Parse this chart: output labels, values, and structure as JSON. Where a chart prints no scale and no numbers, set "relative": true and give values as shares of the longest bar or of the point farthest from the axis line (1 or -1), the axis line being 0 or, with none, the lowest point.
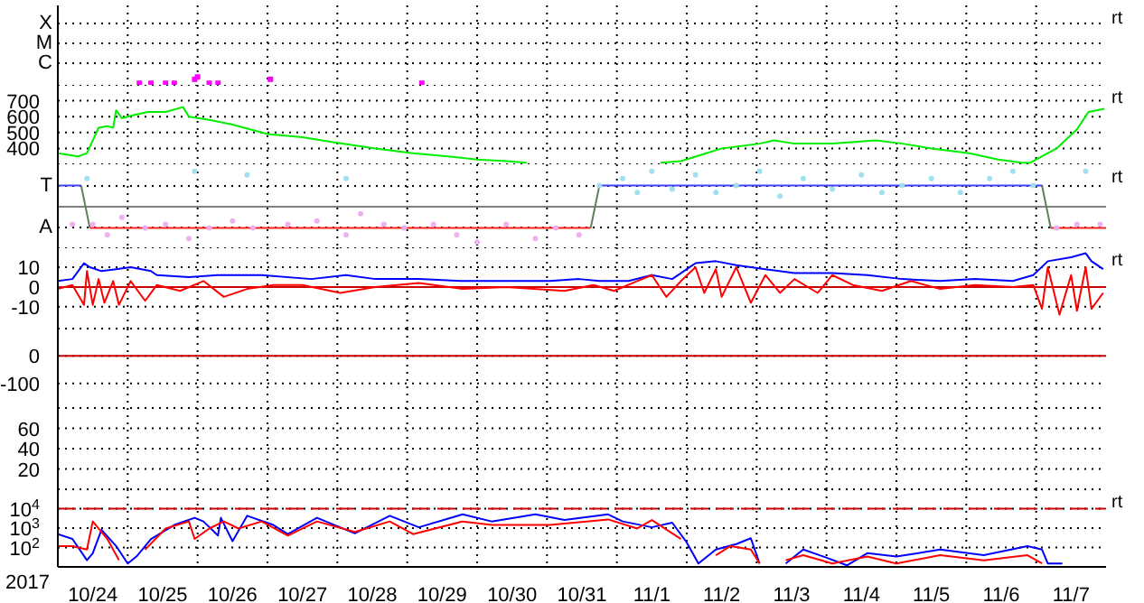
{
  "chart_data": [
    {
      "type": "scatter",
      "relative": true,
      "marker": "square",
      "grid": true,
      "tick_labels": false,
      "xlim": [
        "2017-10-24",
        "2017-11-08"
      ],
      "xticks": [
        {
          "value": "2017-10-25",
          "label": null
        },
        {
          "value": "2017-10-26",
          "label": null
        },
        {
          "value": "2017-10-27",
          "label": null
        },
        {
          "value": "2017-10-28",
          "label": null
        },
        {
          "value": "2017-10-29",
          "label": null
        },
        {
          "value": "2017-10-30",
          "label": null
        },
        {
          "value": "2017-10-31",
          "label": null
        },
        {
          "value": "2017-11-01",
          "label": null
        },
        {
          "value": "2017-11-02",
          "label": null
        },
        {
          "value": "2017-11-03",
          "label": null
        },
        {
          "value": "2017-11-04",
          "label": null
        },
        {
          "value": "2017-11-05",
          "label": null
        },
        {
          "value": "2017-11-06",
          "label": null
        },
        {
          "value": "2017-11-07",
          "label": null
        }
      ],
      "annotations": [
        "X",
        "M",
        "C",
        "rt"
      ],
      "series": [
        {
          "color": "#ff00ff",
          "x": [
            "2017-10-25T04:00",
            "2017-10-25T08:00",
            "2017-10-25T13:00",
            "2017-10-25T16:00",
            "2017-10-25T23:00",
            "2017-10-26T00:00",
            "2017-10-26T04:00",
            "2017-10-26T07:00",
            "2017-10-27T01:00",
            "2017-10-29T05:00"
          ],
          "values": [
            0.2,
            0.2,
            0.2,
            0.2,
            0.7,
            1,
            0.2,
            0.2,
            0.7,
            0.2
          ]
        }
      ]
    },
    {
      "type": "line",
      "grid": true,
      "tick_labels": "y",
      "xlim": [
        "2017-10-24",
        "2017-11-08"
      ],
      "xticks": [
        {
          "value": "2017-10-25",
          "label": null
        },
        {
          "value": "2017-10-26",
          "label": null
        },
        {
          "value": "2017-10-27",
          "label": null
        },
        {
          "value": "2017-10-28",
          "label": null
        },
        {
          "value": "2017-10-29",
          "label": null
        },
        {
          "value": "2017-10-30",
          "label": null
        },
        {
          "value": "2017-10-31",
          "label": null
        },
        {
          "value": "2017-11-01",
          "label": null
        },
        {
          "value": "2017-11-02",
          "label": null
        },
        {
          "value": "2017-11-03",
          "label": null
        },
        {
          "value": "2017-11-04",
          "label": null
        },
        {
          "value": "2017-11-05",
          "label": null
        },
        {
          "value": "2017-11-06",
          "label": null
        },
        {
          "value": "2017-11-07",
          "label": null
        }
      ],
      "ylim": [
        300,
        800
      ],
      "yticks": [
        400,
        500,
        600,
        700
      ],
      "annotations": [
        "rt"
      ],
      "series": [
        {
          "color": "#00ee00",
          "x": [
            "2017-10-24T00:00",
            "2017-10-24T07:00",
            "2017-10-24T10:00",
            "2017-10-24T14:00",
            "2017-10-24T17:00",
            "2017-10-24T19:00",
            "2017-10-24T20:00",
            "2017-10-24T22:00",
            "2017-10-25T02:00",
            "2017-10-25T07:00",
            "2017-10-25T13:00",
            "2017-10-25T19:00",
            "2017-10-25T21:00",
            "2017-10-26T04:00",
            "2017-10-26T12:00",
            "2017-10-27T00:00",
            "2017-10-27T12:00",
            "2017-10-27T22:00",
            "2017-10-28T13:00",
            "2017-10-29T02:00",
            "2017-10-29T14:00",
            "2017-10-30T00:00",
            "2017-10-30T10:00",
            "2017-10-30T17:00",
            "2017-10-31T12:00",
            "2017-11-01T15:00",
            "2017-11-01T22:00",
            "2017-11-02T05:00",
            "2017-11-02T12:00",
            "2017-11-03T01:00",
            "2017-11-03T06:00",
            "2017-11-03T13:00",
            "2017-11-04T02:00",
            "2017-11-04T17:00",
            "2017-11-05T02:00",
            "2017-11-05T12:00",
            "2017-11-06T01:00",
            "2017-11-06T11:00",
            "2017-11-06T19:00",
            "2017-11-06T22:00",
            "2017-11-07T07:00",
            "2017-11-07T14:00",
            "2017-11-07T18:00",
            "2017-11-07T23:30"
          ],
          "values": [
            370,
            350,
            370,
            530,
            540,
            530,
            640,
            590,
            610,
            630,
            630,
            660,
            600,
            580,
            550,
            490,
            470,
            440,
            400,
            370,
            350,
            330,
            320,
            310,
            null,
            310,
            320,
            360,
            400,
            430,
            450,
            430,
            430,
            450,
            430,
            400,
            370,
            330,
            310,
            310,
            400,
            520,
            630,
            650
          ]
        }
      ]
    },
    {
      "type": "line",
      "relative": true,
      "grid": true,
      "tick_labels": false,
      "xlim": [
        "2017-10-24",
        "2017-11-08"
      ],
      "xticks": [
        {
          "value": "2017-10-25",
          "label": null
        },
        {
          "value": "2017-10-26",
          "label": null
        },
        {
          "value": "2017-10-27",
          "label": null
        },
        {
          "value": "2017-10-28",
          "label": null
        },
        {
          "value": "2017-10-29",
          "label": null
        },
        {
          "value": "2017-10-30",
          "label": null
        },
        {
          "value": "2017-10-31",
          "label": null
        },
        {
          "value": "2017-11-01",
          "label": null
        },
        {
          "value": "2017-11-02",
          "label": null
        },
        {
          "value": "2017-11-03",
          "label": null
        },
        {
          "value": "2017-11-04",
          "label": null
        },
        {
          "value": "2017-11-05",
          "label": null
        },
        {
          "value": "2017-11-06",
          "label": null
        },
        {
          "value": "2017-11-07",
          "label": null
        }
      ],
      "ref_lines": [
        {
          "axis": "y",
          "value": 0,
          "color": "#808080"
        }
      ],
      "annotations": [
        "T",
        "A",
        "rt"
      ],
      "series": [
        {
          "type": "scatter",
          "marker": "circle",
          "color": "#f0b0f0",
          "x": [
            "2017-10-24T05:00",
            "2017-10-24T12:00",
            "2017-10-24T17:00",
            "2017-10-24T22:00",
            "2017-10-25T06:00",
            "2017-10-25T13:00",
            "2017-10-25T21:00",
            "2017-10-26T04:00",
            "2017-10-26T12:00",
            "2017-10-26T19:00",
            "2017-10-27T07:00",
            "2017-10-27T17:00",
            "2017-10-28T03:00",
            "2017-10-28T08:00",
            "2017-10-28T16:00",
            "2017-10-28T23:00",
            "2017-10-29T09:00",
            "2017-10-29T17:00",
            "2017-10-30T00:00",
            "2017-10-30T10:00",
            "2017-10-30T20:00",
            "2017-10-31T03:00",
            "2017-10-31T11:00",
            "2017-11-07T07:00",
            "2017-11-07T14:00",
            "2017-11-07T22:00"
          ],
          "values": [
            -0.5,
            -0.5,
            -0.8,
            -0.3,
            -0.6,
            -0.5,
            -0.9,
            -0.6,
            -0.4,
            -0.6,
            -0.5,
            -0.4,
            -0.8,
            -0.2,
            -0.5,
            -0.6,
            -0.5,
            -0.8,
            -1,
            -0.5,
            -0.9,
            -0.6,
            -0.8,
            -0.6,
            -0.5,
            -0.5
          ]
        },
        {
          "type": "scatter",
          "marker": "circle",
          "color": "#a0e0f0",
          "x": [
            "2017-10-24T10:00",
            "2017-10-25T23:00",
            "2017-10-26T17:00",
            "2017-10-28T03:00",
            "2017-10-31T18:00",
            "2017-11-01T02:00",
            "2017-11-01T07:00",
            "2017-11-01T12:00",
            "2017-11-01T19:00",
            "2017-11-02T03:00",
            "2017-11-02T10:00",
            "2017-11-02T17:00",
            "2017-11-03T01:00",
            "2017-11-03T08:00",
            "2017-11-03T16:00",
            "2017-11-04T02:00",
            "2017-11-04T12:00",
            "2017-11-04T19:00",
            "2017-11-05T02:00",
            "2017-11-05T12:00",
            "2017-11-05T22:00",
            "2017-11-06T08:00",
            "2017-11-06T16:00",
            "2017-11-06T23:00",
            "2017-11-07T17:00"
          ],
          "values": [
            0.8,
            1,
            0.9,
            0.8,
            0.6,
            0.8,
            0.4,
            1,
            0.5,
            0.9,
            0.4,
            0.6,
            1,
            0.3,
            0.8,
            0.5,
            0.9,
            0.4,
            0.6,
            0.8,
            0.4,
            0.8,
            1,
            0.6,
            1
          ]
        },
        {
          "color": "#4040ff",
          "x": [
            "2017-10-24T00:00",
            "2017-10-24T08:00",
            "2017-10-28T00:00",
            "2017-10-31T18:00",
            "2017-11-07T02:00"
          ],
          "values": [
            0.6,
            0.6,
            null,
            0.6,
            0.6
          ]
        },
        {
          "color": "#ff2020",
          "x": [
            "2017-10-24T11:00",
            "2017-10-31T15:00",
            "2017-11-03T00:00",
            "2017-11-07T05:00",
            "2017-11-08T00:00"
          ],
          "values": [
            -0.6,
            -0.6,
            null,
            -0.6,
            -0.6
          ]
        },
        {
          "color": "#608060",
          "x": [
            "2017-10-24T08:00",
            "2017-10-24T11:00",
            "2017-10-28T00:00",
            "2017-10-31T15:00",
            "2017-10-31T18:00",
            "2017-11-03T00:00",
            "2017-11-07T02:00",
            "2017-11-07T05:00"
          ],
          "values": [
            0.6,
            -0.6,
            null,
            -0.6,
            0.6,
            null,
            0.6,
            -0.6
          ]
        }
      ]
    },
    {
      "type": "line",
      "grid": true,
      "tick_labels": "y",
      "xlim": [
        "2017-10-24",
        "2017-11-08"
      ],
      "xticks": [
        {
          "value": "2017-10-25",
          "label": null
        },
        {
          "value": "2017-10-26",
          "label": null
        },
        {
          "value": "2017-10-27",
          "label": null
        },
        {
          "value": "2017-10-28",
          "label": null
        },
        {
          "value": "2017-10-29",
          "label": null
        },
        {
          "value": "2017-10-30",
          "label": null
        },
        {
          "value": "2017-10-31",
          "label": null
        },
        {
          "value": "2017-11-01",
          "label": null
        },
        {
          "value": "2017-11-02",
          "label": null
        },
        {
          "value": "2017-11-03",
          "label": null
        },
        {
          "value": "2017-11-04",
          "label": null
        },
        {
          "value": "2017-11-05",
          "label": null
        },
        {
          "value": "2017-11-06",
          "label": null
        },
        {
          "value": "2017-11-07",
          "label": null
        }
      ],
      "ylim": [
        -21,
        20
      ],
      "yticks": [
        -10,
        0,
        10
      ],
      "ref_lines": [
        {
          "axis": "y",
          "value": 0,
          "color": "#cc0000"
        }
      ],
      "annotations": [
        "rt"
      ],
      "series": [
        {
          "color": "#0000ff",
          "x": [
            "2017-10-24T00:00",
            "2017-10-24T05:00",
            "2017-10-24T09:00",
            "2017-10-24T11:00",
            "2017-10-24T15:00",
            "2017-10-24T20:00",
            "2017-10-25T01:00",
            "2017-10-25T08:00",
            "2017-10-25T10:00",
            "2017-10-25T21:00",
            "2017-10-26T07:00",
            "2017-10-26T22:00",
            "2017-10-27T15:00",
            "2017-10-28T03:00",
            "2017-10-28T13:00",
            "2017-10-29T04:00",
            "2017-10-29T19:00",
            "2017-10-30T10:00",
            "2017-10-31T01:00",
            "2017-10-31T11:00",
            "2017-10-31T18:00",
            "2017-11-01T04:00",
            "2017-11-01T12:00",
            "2017-11-01T19:00",
            "2017-11-02T03:00",
            "2017-11-02T10:00",
            "2017-11-02T17:00",
            "2017-11-03T03:00",
            "2017-11-03T13:00",
            "2017-11-04T02:00",
            "2017-11-04T14:00",
            "2017-11-05T02:00",
            "2017-11-05T15:00",
            "2017-11-06T03:00",
            "2017-11-06T16:00",
            "2017-11-06T23:00",
            "2017-11-07T04:00",
            "2017-11-07T12:00",
            "2017-11-07T17:00",
            "2017-11-07T19:00",
            "2017-11-07T23:00"
          ],
          "values": [
            3,
            4,
            12,
            10,
            8,
            9,
            10,
            8,
            6,
            5,
            6,
            6,
            4,
            6,
            4,
            4,
            3,
            3,
            3,
            4,
            3,
            3,
            6,
            4,
            12,
            13,
            11,
            9,
            7,
            7,
            6,
            4,
            3,
            4,
            3,
            6,
            13,
            15,
            17,
            13,
            9
          ]
        },
        {
          "color": "#ff0000",
          "x": [
            "2017-10-24T00:00",
            "2017-10-24T05:00",
            "2017-10-24T09:00",
            "2017-10-24T10:00",
            "2017-10-24T12:00",
            "2017-10-24T14:00",
            "2017-10-24T16:00",
            "2017-10-24T19:00",
            "2017-10-24T21:00",
            "2017-10-25T01:00",
            "2017-10-25T06:00",
            "2017-10-25T10:00",
            "2017-10-25T18:00",
            "2017-10-26T02:00",
            "2017-10-26T09:00",
            "2017-10-26T17:00",
            "2017-10-27T02:00",
            "2017-10-27T12:00",
            "2017-10-28T01:00",
            "2017-10-28T13:00",
            "2017-10-29T04:00",
            "2017-10-29T19:00",
            "2017-10-30T10:00",
            "2017-10-31T06:00",
            "2017-10-31T16:00",
            "2017-10-31T23:00",
            "2017-11-01T07:00",
            "2017-11-01T12:00",
            "2017-11-01T17:00",
            "2017-11-01T22:00",
            "2017-11-02T03:00",
            "2017-11-02T06:00",
            "2017-11-02T10:00",
            "2017-11-02T12:00",
            "2017-11-02T17:00",
            "2017-11-02T22:00",
            "2017-11-03T03:00",
            "2017-11-03T08:00",
            "2017-11-03T13:00",
            "2017-11-03T21:00",
            "2017-11-04T02:00",
            "2017-11-04T09:00",
            "2017-11-04T19:00",
            "2017-11-05T05:00",
            "2017-11-05T15:00",
            "2017-11-06T03:00",
            "2017-11-06T16:00",
            "2017-11-06T23:00",
            "2017-11-07T02:00",
            "2017-11-07T04:00",
            "2017-11-07T08:00",
            "2017-11-07T12:00",
            "2017-11-07T14:00",
            "2017-11-07T17:00",
            "2017-11-07T19:00",
            "2017-11-07T23:00"
          ],
          "values": [
            -1,
            1,
            -9,
            8,
            -9,
            4,
            -8,
            3,
            -9,
            3,
            -7,
            1,
            -2,
            3,
            -5,
            -1,
            1,
            1,
            -3,
            0,
            2,
            -1,
            0,
            -2,
            1,
            -2,
            3,
            6,
            -5,
            3,
            10,
            -3,
            9,
            -5,
            10,
            -8,
            6,
            -3,
            4,
            -3,
            6,
            1,
            -2,
            3,
            -1,
            1,
            0,
            1,
            -11,
            10,
            -14,
            6,
            -12,
            10,
            -11,
            -3
          ]
        }
      ]
    },
    {
      "type": "line",
      "grid": true,
      "tick_labels": "y",
      "xlim": [
        "2017-10-24",
        "2017-11-08"
      ],
      "xticks": [
        {
          "value": "2017-10-25",
          "label": null
        },
        {
          "value": "2017-10-26",
          "label": null
        },
        {
          "value": "2017-10-27",
          "label": null
        },
        {
          "value": "2017-10-28",
          "label": null
        },
        {
          "value": "2017-10-29",
          "label": null
        },
        {
          "value": "2017-10-30",
          "label": null
        },
        {
          "value": "2017-10-31",
          "label": null
        },
        {
          "value": "2017-11-01",
          "label": null
        },
        {
          "value": "2017-11-02",
          "label": null
        },
        {
          "value": "2017-11-03",
          "label": null
        },
        {
          "value": "2017-11-04",
          "label": null
        },
        {
          "value": "2017-11-05",
          "label": null
        },
        {
          "value": "2017-11-06",
          "label": null
        },
        {
          "value": "2017-11-07",
          "label": null
        }
      ],
      "ylim": [
        -190,
        100
      ],
      "yticks": [
        -100,
        0
      ],
      "ref_lines": [
        {
          "axis": "y",
          "value": 0,
          "color": "#cc0000"
        }
      ]
    },
    {
      "type": "line",
      "grid": true,
      "tick_labels": "y",
      "xlim": [
        "2017-10-24",
        "2017-11-08"
      ],
      "xticks": [
        {
          "value": "2017-10-25",
          "label": null
        },
        {
          "value": "2017-10-26",
          "label": null
        },
        {
          "value": "2017-10-27",
          "label": null
        },
        {
          "value": "2017-10-28",
          "label": null
        },
        {
          "value": "2017-10-29",
          "label": null
        },
        {
          "value": "2017-10-30",
          "label": null
        },
        {
          "value": "2017-10-31",
          "label": null
        },
        {
          "value": "2017-11-01",
          "label": null
        },
        {
          "value": "2017-11-02",
          "label": null
        },
        {
          "value": "2017-11-03",
          "label": null
        },
        {
          "value": "2017-11-04",
          "label": null
        },
        {
          "value": "2017-11-05",
          "label": null
        },
        {
          "value": "2017-11-06",
          "label": null
        },
        {
          "value": "2017-11-07",
          "label": null
        }
      ],
      "ylim": [
        0,
        80
      ],
      "yticks": [
        20,
        40,
        60
      ]
    },
    {
      "type": "line",
      "log": "y",
      "grid": true,
      "xlabel": "2017",
      "xlim": [
        "2017-10-24",
        "2017-11-08"
      ],
      "xticks": [
        {
          "value": "2017-10-24T12:00",
          "label": "10/24"
        },
        {
          "value": "2017-10-25",
          "label": null
        },
        {
          "value": "2017-10-25T12:00",
          "label": "10/25"
        },
        {
          "value": "2017-10-26",
          "label": null
        },
        {
          "value": "2017-10-26T12:00",
          "label": "10/26"
        },
        {
          "value": "2017-10-27",
          "label": null
        },
        {
          "value": "2017-10-27T12:00",
          "label": "10/27"
        },
        {
          "value": "2017-10-28",
          "label": null
        },
        {
          "value": "2017-10-28T12:00",
          "label": "10/28"
        },
        {
          "value": "2017-10-29",
          "label": null
        },
        {
          "value": "2017-10-29T12:00",
          "label": "10/29"
        },
        {
          "value": "2017-10-30",
          "label": null
        },
        {
          "value": "2017-10-30T12:00",
          "label": "10/30"
        },
        {
          "value": "2017-10-31",
          "label": null
        },
        {
          "value": "2017-10-31T12:00",
          "label": "10/31"
        },
        {
          "value": "2017-11-01",
          "label": null
        },
        {
          "value": "2017-11-01T12:00",
          "label": "11/1"
        },
        {
          "value": "2017-11-02",
          "label": null
        },
        {
          "value": "2017-11-02T12:00",
          "label": "11/2"
        },
        {
          "value": "2017-11-03",
          "label": null
        },
        {
          "value": "2017-11-03T12:00",
          "label": "11/3"
        },
        {
          "value": "2017-11-04",
          "label": null
        },
        {
          "value": "2017-11-04T12:00",
          "label": "11/4"
        },
        {
          "value": "2017-11-05",
          "label": null
        },
        {
          "value": "2017-11-05T12:00",
          "label": "11/5"
        },
        {
          "value": "2017-11-06",
          "label": null
        },
        {
          "value": "2017-11-06T12:00",
          "label": "11/6"
        },
        {
          "value": "2017-11-07",
          "label": null
        },
        {
          "value": "2017-11-07T12:00",
          "label": "11/7"
        }
      ],
      "ylim": [
        10,
        100000
      ],
      "yticks": [
        {
          "value": 100,
          "label": "10$^{2}$"
        },
        {
          "value": 1000,
          "label": "10$^{3}$"
        },
        {
          "value": 10000,
          "label": "10$^{4}$"
        }
      ],
      "ref_lines": [
        {
          "axis": "y",
          "value": 10000,
          "color": "#cc0000",
          "line_style": "dashed"
        }
      ],
      "annotations": [
        "rt"
      ],
      "series": [
        {
          "color": "#0000ff",
          "x": [
            "2017-10-24T00:00",
            "2017-10-24T05:00",
            "2017-10-24T10:00",
            "2017-10-24T12:00",
            "2017-10-24T15:00",
            "2017-10-24T20:00",
            "2017-10-25T00:00",
            "2017-10-25T03:00",
            "2017-10-25T08:00",
            "2017-10-25T16:00",
            "2017-10-25T23:00",
            "2017-10-26T02:00",
            "2017-10-26T07:00",
            "2017-10-26T08:00",
            "2017-10-26T12:00",
            "2017-10-26T17:00",
            "2017-10-27T02:00",
            "2017-10-27T07:00",
            "2017-10-27T17:00",
            "2017-10-28T06:00",
            "2017-10-28T18:00",
            "2017-10-29T04:00",
            "2017-10-29T19:00",
            "2017-10-30T05:00",
            "2017-10-30T20:00",
            "2017-10-31T06:00",
            "2017-10-31T21:00",
            "2017-11-01T02:00",
            "2017-11-01T12:00",
            "2017-11-01T19:00",
            "2017-11-02T00:00",
            "2017-11-02T04:00",
            "2017-11-02T10:00",
            "2017-11-02T17:00",
            "2017-11-02T22:00",
            "2017-11-03T01:00",
            "2017-11-03T06:00",
            "2017-11-03T10:00",
            "2017-11-03T16:00",
            "2017-11-03T23:00",
            "2017-11-04T07:00",
            "2017-11-04T14:00",
            "2017-11-05T00:00",
            "2017-11-05T15:00",
            "2017-11-06T06:00",
            "2017-11-06T21:00",
            "2017-11-07T02:00",
            "2017-11-07T04:00",
            "2017-11-07T09:00"
          ],
          "values": [
            490,
            275,
            22,
            51,
            810,
            120,
            15,
            34,
            275,
            1450,
            3400,
            2200,
            410,
            3400,
            210,
            4300,
            1450,
            490,
            3400,
            530,
            4300,
            1100,
            5100,
            2200,
            5100,
            2600,
            5100,
            2200,
            1100,
            1900,
            180,
            15,
            78,
            150,
            300,
            15,
            null,
            15,
            78,
            34,
            12,
            51,
            34,
            78,
            40,
            118,
            78,
            15,
            15
          ]
        },
        {
          "color": "#ff0000",
          "x": [
            "2017-10-24T00:00",
            "2017-10-24T05:00",
            "2017-10-24T10:00",
            "2017-10-24T12:00",
            "2017-10-24T17:00",
            "2017-10-24T21:00",
            "2017-10-25T01:00",
            "2017-10-25T06:00",
            "2017-10-25T13:00",
            "2017-10-25T21:00",
            "2017-10-25T23:00",
            "2017-10-26T04:00",
            "2017-10-26T09:00",
            "2017-10-26T14:00",
            "2017-10-26T22:00",
            "2017-10-27T07:00",
            "2017-10-27T17:00",
            "2017-10-28T06:00",
            "2017-10-28T18:00",
            "2017-10-29T02:00",
            "2017-10-29T19:00",
            "2017-10-30T05:00",
            "2017-10-31T01:00",
            "2017-10-31T06:00",
            "2017-10-31T21:00",
            "2017-11-01T07:00",
            "2017-11-01T12:00",
            "2017-11-01T22:00",
            "2017-11-01T23:00",
            "2017-11-02T03:00",
            "2017-11-02T10:00",
            "2017-11-02T15:00",
            "2017-11-02T22:00",
            "2017-11-03T01:00",
            "2017-11-03T06:00",
            "2017-11-03T10:00",
            "2017-11-03T16:00",
            "2017-11-04T02:00",
            "2017-11-04T14:00",
            "2017-11-05T00:00",
            "2017-11-05T15:00",
            "2017-11-06T06:00",
            "2017-11-06T21:00",
            "2017-11-07T02:00"
          ],
          "values": [
            118,
            118,
            78,
            2200,
            275,
            22,
            null,
            78,
            950,
            2200,
            275,
            950,
            2200,
            950,
            2200,
            410,
            2200,
            630,
            2200,
            490,
            2200,
            1450,
            1450,
            1700,
            2800,
            950,
            2600,
            275,
            null,
            null,
            40,
            118,
            78,
            15,
            null,
            22,
            40,
            15,
            34,
            15,
            40,
            22,
            40,
            15
          ]
        }
      ]
    }
  ]
}
